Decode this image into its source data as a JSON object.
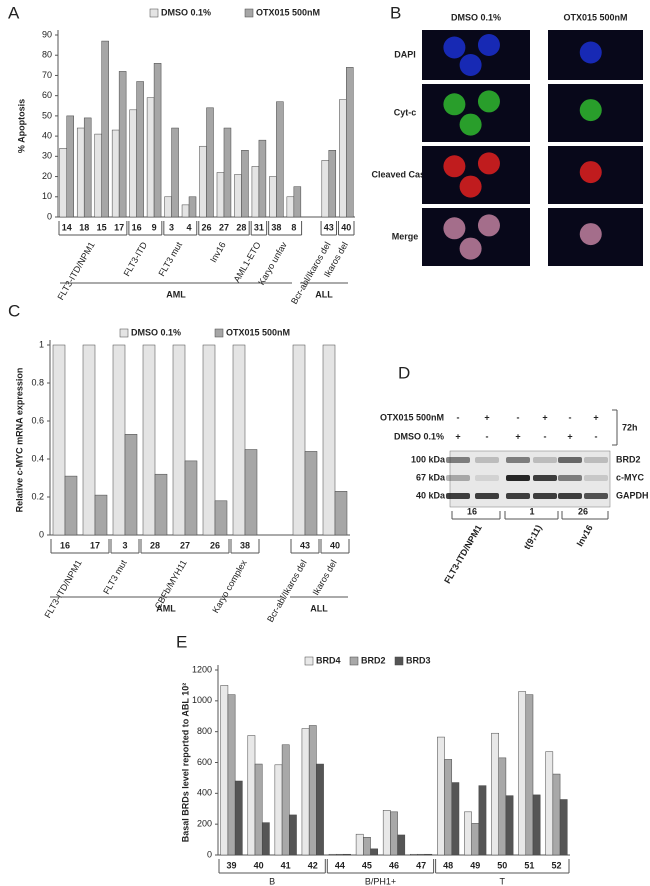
{
  "panel_letters": [
    "A",
    "B",
    "C",
    "D",
    "E"
  ],
  "chart_data": [
    {
      "type": "bar",
      "y_label": "% Apoptosis",
      "categories": [
        "14",
        "18",
        "15",
        "17",
        "16",
        "9",
        "3",
        "4",
        "26",
        "27",
        "28",
        "31",
        "38",
        "8",
        "43",
        "40"
      ],
      "series": [
        {
          "name": "DMSO 0.1%",
          "color": "#e4e4e4",
          "values": [
            34,
            44,
            41,
            43,
            53,
            59,
            10,
            6,
            35,
            22,
            21,
            25,
            20,
            10,
            28,
            58
          ]
        },
        {
          "name": "OTX015 500nM",
          "color": "#a6a6a6",
          "values": [
            50,
            49,
            87,
            72,
            67,
            76,
            44,
            10,
            54,
            44,
            33,
            38,
            57,
            15,
            33,
            74
          ]
        }
      ],
      "ylim": [
        0,
        90
      ],
      "yticks": [
        0,
        10,
        20,
        30,
        40,
        50,
        60,
        70,
        80,
        90
      ],
      "groups": [
        "FLT3-ITD/NPM1",
        "FLT3-ITD",
        "FLT3 mut",
        "Inv16",
        "AML1-ETO",
        "Karyo unfav",
        "Bcr-abl/Ikaros del",
        "Ikaros del"
      ],
      "supergroups": [
        "AML",
        "ALL"
      ]
    },
    {
      "type": "bar",
      "y_label": "Relative c-MYC mRNA expression",
      "categories": [
        "16",
        "17",
        "3",
        "28",
        "27",
        "26",
        "38",
        "43",
        "40"
      ],
      "series": [
        {
          "name": "DMSO 0.1%",
          "color": "#e4e4e4",
          "values": [
            1,
            1,
            1,
            1,
            1,
            1,
            1,
            1,
            1
          ]
        },
        {
          "name": "OTX015 500nM",
          "color": "#a6a6a6",
          "values": [
            0.31,
            0.21,
            0.53,
            0.32,
            0.39,
            0.18,
            0.45,
            0.44,
            0.23
          ]
        }
      ],
      "ylim": [
        0,
        1
      ],
      "yticks": [
        0,
        0.2,
        0.4,
        0.6,
        0.8,
        1
      ],
      "groups": [
        "FLT3-ITD/NPM1",
        "FLT3 mut",
        "CBFb/MYH11",
        "Karyo complex",
        "Bcr-abl/Ikaros del",
        "Ikaros del"
      ],
      "supergroups": [
        "AML",
        "ALL"
      ]
    },
    {
      "type": "bar",
      "y_label": "Basal BRDs level reported to ABL 10²",
      "categories": [
        "39",
        "40",
        "41",
        "42",
        "44",
        "45",
        "46",
        "47",
        "48",
        "49",
        "50",
        "51",
        "52"
      ],
      "series": [
        {
          "name": "BRD4",
          "color": "#e8e8e8",
          "values": [
            1100,
            775,
            585,
            820,
            5,
            135,
            290,
            5,
            765,
            280,
            790,
            1060,
            670
          ]
        },
        {
          "name": "BRD2",
          "color": "#a8a8a8",
          "values": [
            1040,
            590,
            715,
            840,
            5,
            115,
            280,
            5,
            620,
            205,
            630,
            1040,
            525
          ]
        },
        {
          "name": "BRD3",
          "color": "#555555",
          "values": [
            480,
            210,
            260,
            590,
            5,
            40,
            130,
            5,
            470,
            450,
            385,
            390,
            360
          ]
        }
      ],
      "ylim": [
        0,
        1200
      ],
      "yticks": [
        0,
        200,
        400,
        600,
        800,
        1000,
        1200
      ],
      "groups": [
        "B",
        "B/PH1+",
        "T"
      ]
    }
  ],
  "panel_b": {
    "columns": [
      "DMSO 0.1%",
      "OTX015 500nM"
    ],
    "rows": [
      "DAPI",
      "Cyt-c",
      "Cleaved Casp-3",
      "Merge"
    ]
  },
  "panel_d": {
    "treatments": [
      {
        "name": "OTX015 500nM",
        "signs": [
          "-",
          "+",
          "-",
          "+",
          "-",
          "+"
        ]
      },
      {
        "name": "DMSO 0.1%",
        "signs": [
          "+",
          "-",
          "+",
          "-",
          "+",
          "-"
        ]
      }
    ],
    "time": "72h",
    "markers": [
      "100 kDa",
      "67 kDa",
      "40 kDa"
    ],
    "proteins": [
      "BRD2",
      "c-MYC",
      "GAPDH"
    ],
    "patients": [
      "16",
      "1",
      "26"
    ],
    "groups": [
      "FLT3-ITD/NPM1",
      "t(9;11)",
      "Inv16"
    ]
  }
}
